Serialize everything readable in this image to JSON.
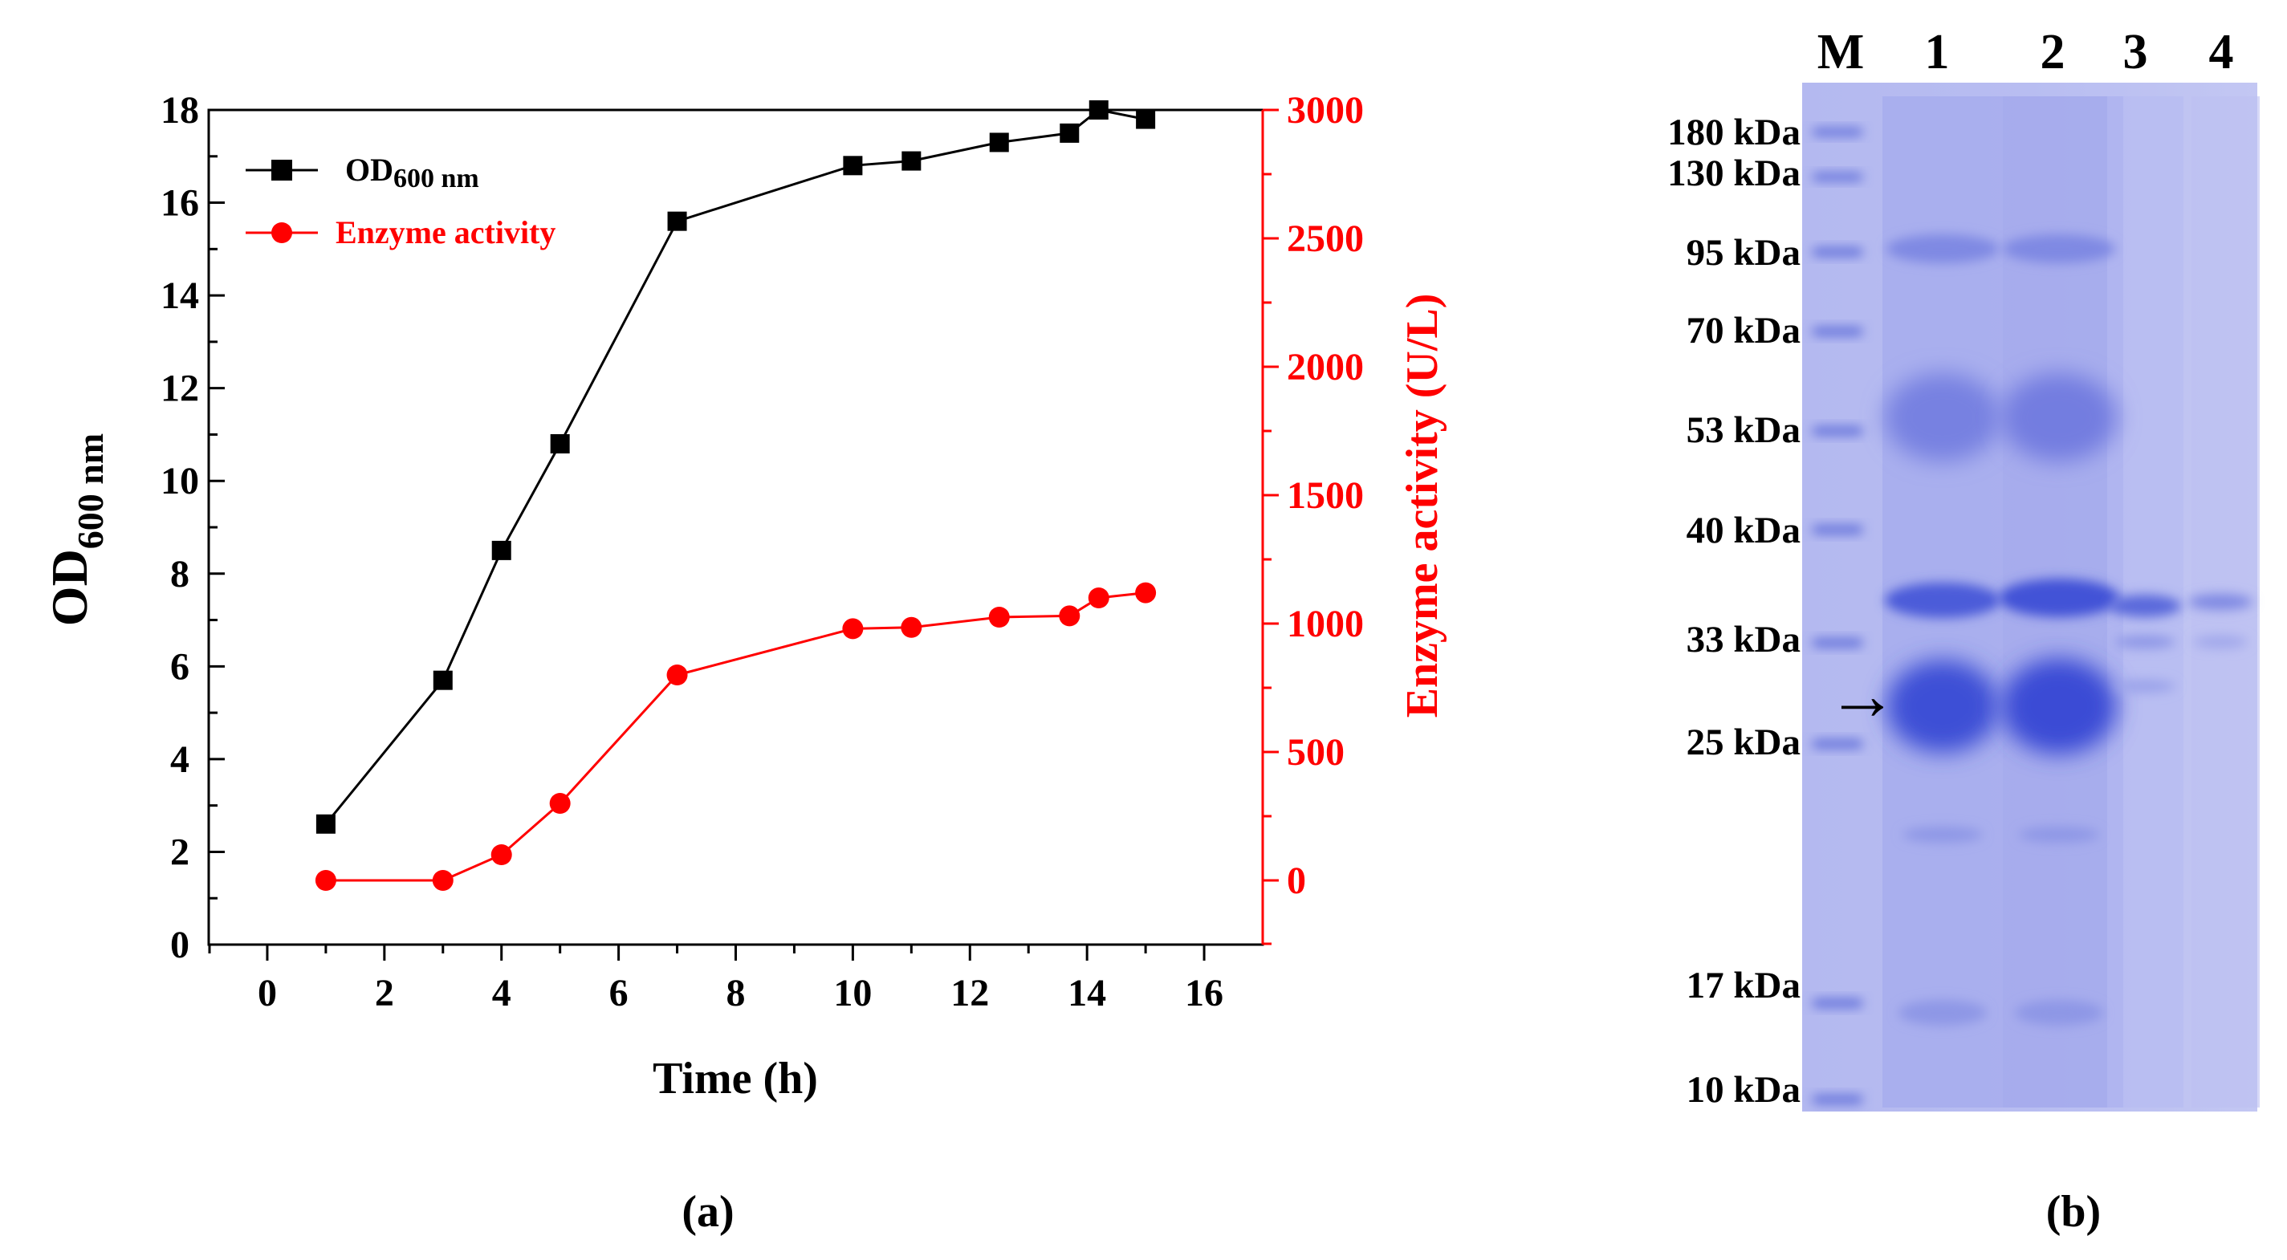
{
  "colors": {
    "od_series": "#000000",
    "activity_series": "#ff0000",
    "gel_background": "#aeb3ee",
    "gel_band": "#3d4fd6",
    "marker_band": "#5a69d8"
  },
  "panel_a": {
    "caption": "(a)",
    "legend": {
      "od_label_main": "OD",
      "od_label_sub": "600 nm",
      "activity_label": "Enzyme activity"
    }
  },
  "panel_b": {
    "caption": "(b)",
    "lane_labels": [
      "M",
      "1",
      "2",
      "3",
      "4"
    ],
    "arrow_glyph": "→",
    "marker_labels": [
      "180 kDa",
      "130 kDa",
      "95 kDa",
      "70 kDa",
      "53 kDa",
      "40 kDa",
      "33 kDa",
      "25 kDa",
      "17 kDa",
      "10 kDa"
    ]
  },
  "chart_data": {
    "type": "line",
    "title": "",
    "xlabel": "Time (h)",
    "ylabel_main": "OD",
    "ylabel_sub": "600 nm",
    "y2label": "Enzyme activity (U/L)",
    "xlim": [
      -1,
      17
    ],
    "ylim": [
      0,
      18
    ],
    "y2lim": [
      -250,
      3000
    ],
    "xticks": [
      "0",
      "2",
      "4",
      "6",
      "8",
      "10",
      "12",
      "14",
      "16"
    ],
    "yticks": [
      "0",
      "2",
      "4",
      "6",
      "8",
      "10",
      "12",
      "14",
      "16",
      "18"
    ],
    "y2ticks": [
      "0",
      "500",
      "1000",
      "1500",
      "2000",
      "2500",
      "3000"
    ],
    "grid": false,
    "legend_position": "top-left",
    "series": [
      {
        "name": "OD600 nm",
        "axis": "left",
        "marker": "square",
        "x": [
          1,
          3,
          4,
          5,
          7,
          10,
          11,
          12.5,
          13.7,
          14.2,
          15
        ],
        "values": [
          2.6,
          5.7,
          8.5,
          10.8,
          15.6,
          16.8,
          16.9,
          17.3,
          17.5,
          18.0,
          17.8
        ]
      },
      {
        "name": "Enzyme activity",
        "axis": "right",
        "marker": "circle",
        "x": [
          1,
          3,
          4,
          5,
          7,
          10,
          11,
          12.5,
          13.7,
          14.2,
          15
        ],
        "values": [
          0,
          0,
          100,
          300,
          800,
          980,
          985,
          1025,
          1030,
          1100,
          1120
        ]
      }
    ]
  }
}
